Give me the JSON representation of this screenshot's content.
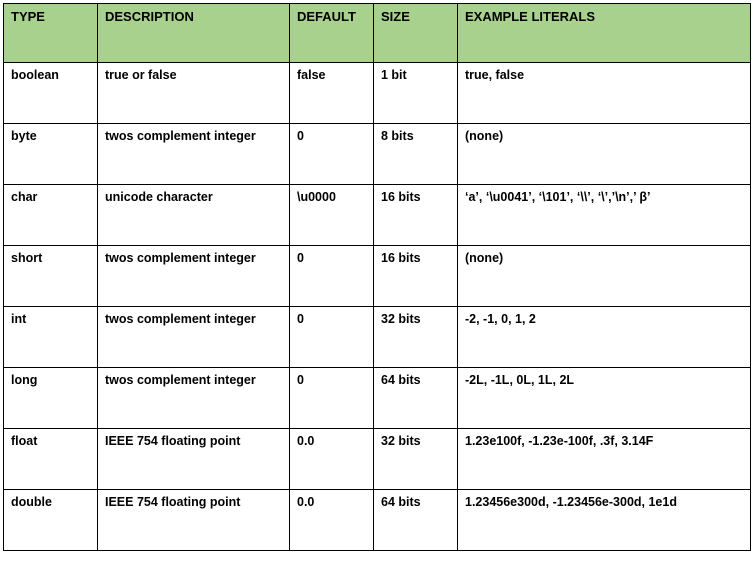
{
  "headers": [
    "TYPE",
    "DESCRIPTION",
    "DEFAULT",
    "SIZE",
    "EXAMPLE LITERALS"
  ],
  "header_color": "#a9d18e",
  "rows": [
    [
      "boolean",
      "true or false",
      "false",
      "1 bit",
      "true, false"
    ],
    [
      "byte",
      "twos complement integer",
      "0",
      "8 bits",
      "(none)"
    ],
    [
      "char",
      "unicode character",
      "\\u0000",
      "16 bits",
      "‘a’, ‘\\u0041’, ‘\\101’, ‘\\\\’, ‘\\’,’\\n’,’ β’"
    ],
    [
      "short",
      "twos complement integer",
      "0",
      "16 bits",
      "(none)"
    ],
    [
      "int",
      "twos complement integer",
      "0",
      "32 bits",
      "-2, -1, 0, 1, 2"
    ],
    [
      "long",
      "twos complement integer",
      "0",
      "64 bits",
      "-2L, -1L, 0L, 1L, 2L"
    ],
    [
      "float",
      "IEEE 754 floating point",
      "0.0",
      "32 bits",
      "1.23e100f, -1.23e-100f, .3f, 3.14F"
    ],
    [
      "double",
      "IEEE 754 floating point",
      "0.0",
      "64 bits",
      "1.23456e300d, -1.23456e-300d, 1e1d"
    ]
  ]
}
